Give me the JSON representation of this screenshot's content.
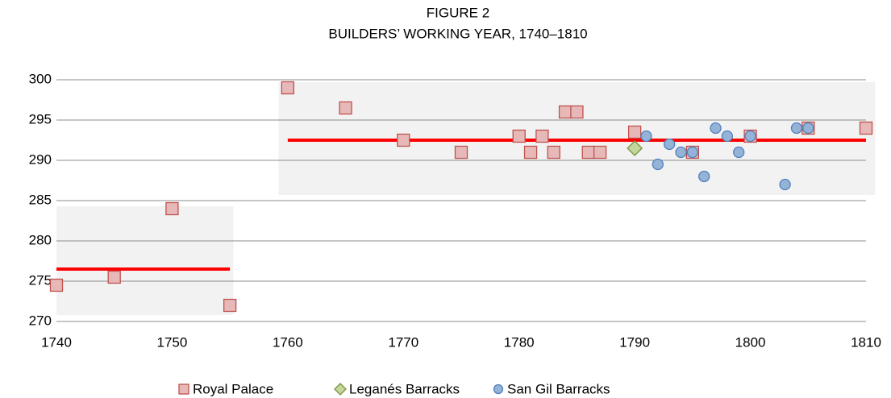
{
  "chart_data": {
    "type": "scatter",
    "title": "FIGURE 2",
    "subtitle": "BUILDERS’ WORKING YEAR, 1740–1810",
    "xlim": [
      1740,
      1810
    ],
    "xticks": [
      1740,
      1750,
      1760,
      1770,
      1780,
      1790,
      1800,
      1810
    ],
    "ylim": [
      270,
      300
    ],
    "yticks": [
      270,
      275,
      280,
      285,
      290,
      295,
      300
    ],
    "grid": true,
    "legend": "bottom",
    "shaded_ranges": [
      {
        "x": [
          1740,
          1755.3
        ],
        "y": [
          270.8,
          284.3
        ],
        "color": "#f2f2f2"
      },
      {
        "x": [
          1759.2,
          1810.8
        ],
        "y": [
          285.7,
          299.7
        ],
        "color": "#f2f2f2"
      }
    ],
    "mean_lines": [
      {
        "x": [
          1740,
          1755
        ],
        "value": 276.5,
        "color": "#ff0000"
      },
      {
        "x": [
          1760,
          1810
        ],
        "value": 292.5,
        "color": "#ff0000"
      }
    ],
    "series": [
      {
        "name": "Royal Palace",
        "marker": "square",
        "color": "#e6b9b8",
        "edge": "#c0504d",
        "x": [
          1740,
          1745,
          1750,
          1755,
          1760,
          1765,
          1770,
          1775,
          1780,
          1781,
          1782,
          1783,
          1784,
          1785,
          1786,
          1787,
          1790,
          1795,
          1800,
          1805,
          1810
        ],
        "values": [
          274.5,
          275.5,
          284,
          272,
          299,
          296.5,
          292.5,
          291,
          293,
          291,
          293,
          291,
          296,
          296,
          291,
          291,
          293.5,
          291,
          293,
          294,
          294
        ]
      },
      {
        "name": "Leganés Barracks",
        "marker": "diamond",
        "color": "#c3d69b",
        "edge": "#77933c",
        "x": [
          1790
        ],
        "values": [
          291.5
        ]
      },
      {
        "name": "San Gil Barracks",
        "marker": "circle",
        "color": "#95b3d7",
        "edge": "#4f81bd",
        "x": [
          1791,
          1792,
          1793,
          1794,
          1795,
          1796,
          1797,
          1798,
          1799,
          1800,
          1803,
          1804,
          1805
        ],
        "values": [
          293,
          289.5,
          292,
          291,
          291,
          288,
          294,
          293,
          291,
          293,
          287,
          294,
          294
        ]
      }
    ]
  }
}
